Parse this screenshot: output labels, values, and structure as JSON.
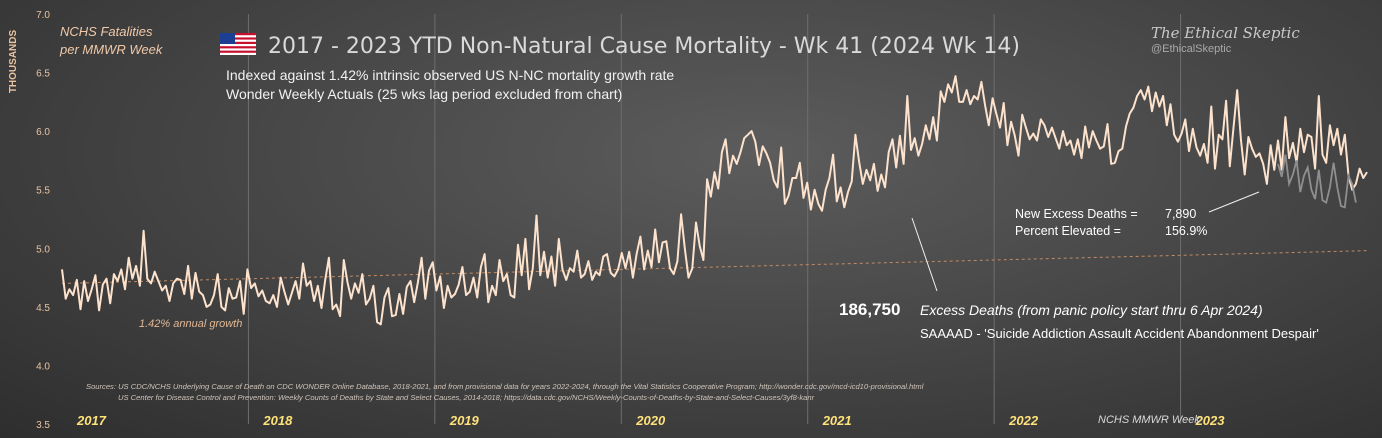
{
  "header": {
    "title": "2017 - 2023 YTD Non-Natural Cause Mortality - Wk 41 (2024 Wk 14)",
    "subtitle_1": "Indexed against 1.42% intrinsic observed US N-NC mortality growth rate",
    "subtitle_2": "Wonder  Weekly Actuals (25 wks lag period excluded from chart)",
    "left_label_1": "NCHS Fatalities",
    "left_label_2": "per MMWR Week",
    "y_axis_unit": "THOUSANDS",
    "brand_name": "The Ethical Skeptic",
    "brand_handle": "@EthicalSkeptic"
  },
  "annotations": {
    "growth_label": "1.42% annual growth",
    "excess_total": "186,750",
    "excess_text": "Excess Deaths (from panic policy start thru 6 Apr 2024)",
    "saaaad": "SAAAAD - 'Suicide Addiction Assault Accident Abandonment Despair'",
    "new_excess_label": "New Excess Deaths =",
    "new_excess_value": "7,890",
    "percent_label": "Percent Elevated =",
    "percent_value": "156.9%",
    "sources_1": "Sources:  US CDC/NCHS Underlying Cause of Death on CDC WONDER Online Database, 2018-2021, and from provisional data for years 2022-2024, through the Vital Statistics Cooperative Program; http://wonder.cdc.gov/mcd-icd10-provisional.html",
    "sources_2": "US Center for Disease Control and Prevention: Weekly  Counts of Deaths by State and Select Causes, 2014-2018; https://data.cdc.gov/NCHS/Weekly-Counts-of-Deaths-by-State-and-Select-Causes/3yf8-kanr",
    "week_label": "NCHS MMWR Week"
  },
  "colors": {
    "actual_line": "#fde3cd",
    "provisional_line": "#8f8f8f",
    "trend_line": "#c08a66",
    "year_label": "#ffe27a",
    "tick_label": "#eac39f",
    "grid": "#6e6e6e"
  },
  "chart_data": {
    "type": "line",
    "xlabel": "",
    "ylabel": "THOUSANDS",
    "ylim": [
      3.5,
      7.0
    ],
    "yticks": [
      "3.5",
      "4.0",
      "4.5",
      "5.0",
      "5.5",
      "6.0",
      "6.5",
      "7.0"
    ],
    "year_labels": [
      "2017",
      "2018",
      "2019",
      "2020",
      "2021",
      "2022",
      "2023"
    ],
    "grid": "vertical lines at year boundaries",
    "trend": {
      "name": "1.42% annual growth",
      "start": 4.7,
      "end": 4.98
    },
    "series": [
      {
        "values": [
          4.82,
          4.57,
          4.65,
          4.6,
          4.73,
          4.48,
          4.72,
          4.55,
          4.65,
          4.77,
          4.47,
          4.69,
          4.74,
          4.53,
          4.78,
          4.72,
          4.82,
          4.65,
          4.92,
          4.74,
          4.85,
          4.68,
          5.15,
          4.74,
          4.7,
          4.8,
          4.72,
          4.64,
          4.68,
          4.55,
          4.7,
          4.74,
          4.73,
          4.61,
          4.85,
          4.57,
          4.79,
          4.63,
          4.6,
          4.5,
          4.52,
          4.6,
          4.78,
          4.5,
          4.47,
          4.66,
          4.57,
          4.58,
          4.72,
          4.44,
          4.82,
          4.66,
          4.7,
          4.59,
          4.64,
          4.55,
          4.53,
          4.6,
          4.5,
          4.75,
          4.63,
          4.52,
          4.62,
          4.72,
          4.57,
          4.87,
          4.68,
          4.72,
          4.55,
          4.68,
          4.49,
          4.73,
          4.92,
          4.48,
          4.52,
          4.42,
          4.9,
          4.71,
          4.57,
          4.7,
          4.62,
          4.78,
          4.52,
          4.57,
          4.68,
          4.37,
          4.35,
          4.58,
          4.66,
          4.42,
          4.43,
          4.61,
          4.44,
          4.67,
          4.72,
          4.54,
          4.71,
          4.92,
          4.57,
          4.81,
          4.88,
          4.64,
          4.76,
          4.49,
          4.68,
          4.58,
          4.61,
          4.69,
          4.84,
          4.6,
          4.63,
          4.75,
          4.58,
          4.84,
          4.95,
          4.54,
          4.68,
          4.6,
          4.9,
          4.72,
          4.78,
          4.6,
          4.58,
          5.03,
          4.77,
          5.08,
          4.65,
          4.83,
          5.28,
          4.77,
          4.97,
          4.75,
          4.93,
          4.68,
          5.08,
          4.82,
          4.73,
          4.83,
          4.8,
          4.98,
          4.75,
          4.78,
          4.89,
          4.73,
          4.8,
          4.77,
          4.93,
          4.95,
          4.79,
          4.76,
          4.82,
          4.96,
          4.83,
          4.97,
          4.75,
          4.95,
          5.1,
          4.82,
          4.98,
          4.84,
          5.16,
          4.88,
          5.05,
          5.06,
          4.83,
          4.78,
          4.89,
          5.29,
          5.0,
          4.75,
          4.83,
          5.22,
          5.02,
          4.9,
          5.59,
          5.44,
          5.65,
          5.51,
          5.82,
          5.93,
          5.64,
          5.79,
          5.72,
          5.82,
          5.94,
          5.97,
          6.0,
          5.91,
          5.71,
          5.87,
          5.81,
          5.73,
          5.58,
          5.52,
          5.86,
          5.38,
          5.45,
          5.6,
          5.6,
          5.73,
          5.43,
          5.56,
          5.33,
          5.5,
          5.38,
          5.32,
          5.5,
          5.6,
          5.8,
          5.4,
          5.52,
          5.35,
          5.48,
          5.57,
          5.97,
          5.74,
          5.55,
          5.67,
          5.58,
          5.72,
          5.49,
          5.63,
          5.52,
          5.82,
          5.93,
          5.69,
          5.96,
          5.72,
          6.3,
          5.84,
          5.94,
          5.79,
          5.89,
          6.05,
          5.93,
          6.12,
          5.92,
          6.34,
          6.25,
          6.4,
          6.33,
          6.47,
          6.25,
          6.25,
          6.35,
          6.23,
          6.3,
          6.27,
          6.42,
          6.22,
          6.05,
          6.28,
          6.15,
          6.03,
          6.24,
          5.88,
          6.08,
          5.96,
          5.79,
          6.14,
          6.03,
          5.93,
          5.98,
          5.92,
          6.1,
          6.05,
          5.95,
          6.03,
          5.94,
          5.85,
          6.0,
          5.88,
          5.92,
          5.8,
          5.93,
          5.77,
          6.04,
          5.86,
          6.0,
          5.92,
          5.85,
          5.87,
          6.06,
          5.72,
          5.73,
          5.83,
          5.85,
          6.04,
          6.15,
          6.2,
          6.3,
          6.35,
          6.27,
          6.38,
          6.17,
          6.33,
          6.21,
          6.3,
          6.05,
          6.23,
          5.97,
          5.91,
          5.98,
          6.1,
          5.83,
          6.02,
          5.86,
          5.79,
          5.89,
          5.73,
          6.21,
          5.68,
          5.97,
          5.93,
          6.26,
          5.7,
          6.03,
          6.35,
          5.93,
          5.63,
          5.95,
          5.85,
          5.78,
          5.81,
          5.72,
          5.55,
          5.88,
          5.67,
          5.92,
          5.67,
          6.12,
          5.77,
          5.9,
          5.73,
          6.02,
          5.82,
          5.97,
          5.95,
          5.68,
          6.3,
          5.8,
          5.73,
          6.05,
          5.88,
          6.02,
          5.8,
          5.97,
          5.62,
          5.5,
          5.55,
          5.68,
          5.6,
          5.65
        ]
      },
      {
        "values": [
          5.72,
          5.61,
          5.8,
          5.55,
          5.63,
          5.75,
          5.48,
          5.62,
          5.69,
          5.5,
          5.42,
          5.67,
          5.41,
          5.39,
          5.52,
          5.73,
          5.52,
          5.36,
          5.35,
          5.62,
          5.55,
          5.39
        ]
      }
    ]
  }
}
